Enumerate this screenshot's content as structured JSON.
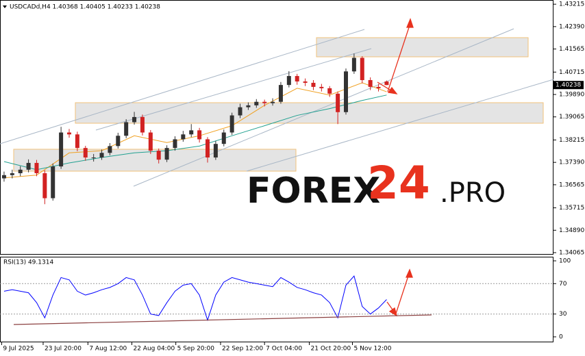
{
  "chart_data": [
    {
      "type": "candlestick",
      "title": "USDCADd,H4  1.40368 1.40405 1.40233 1.40238",
      "up_color": "#333333",
      "down_color": "#d22222",
      "x": [
        0,
        1,
        2,
        3,
        4,
        5,
        6,
        7,
        8,
        9,
        10,
        11,
        12,
        13,
        14,
        15,
        16,
        17,
        18,
        19,
        20,
        21,
        22,
        23,
        24,
        25,
        26,
        27,
        28,
        29,
        30,
        31,
        32,
        33,
        34,
        35,
        36,
        37,
        38,
        39,
        40,
        41,
        42,
        43,
        44,
        45,
        46,
        47
      ],
      "open": [
        1.368,
        1.3692,
        1.3699,
        1.3712,
        1.3737,
        1.3699,
        1.3607,
        1.3724,
        1.3849,
        1.3842,
        1.3792,
        1.3757,
        1.3757,
        1.3774,
        1.3799,
        1.3837,
        1.3887,
        1.3906,
        1.3849,
        1.3782,
        1.3749,
        1.3792,
        1.3824,
        1.3842,
        1.3857,
        1.3824,
        1.3757,
        1.3807,
        1.3849,
        1.3912,
        1.3942,
        1.3949,
        1.3962,
        1.3957,
        1.3962,
        1.4024,
        1.4057,
        1.4037,
        1.4032,
        1.4017,
        1.4012,
        1.3992,
        1.3924,
        1.4074,
        1.4124,
        1.4042,
        1.4017,
        1.40368
      ],
      "high": [
        1.3705,
        1.3712,
        1.3725,
        1.375,
        1.3748,
        1.371,
        1.3735,
        1.387,
        1.3862,
        1.3852,
        1.38,
        1.377,
        1.3786,
        1.381,
        1.3848,
        1.3898,
        1.3925,
        1.3915,
        1.3858,
        1.379,
        1.3802,
        1.3835,
        1.3855,
        1.388,
        1.3866,
        1.3832,
        1.3818,
        1.386,
        1.3922,
        1.3955,
        1.396,
        1.3972,
        1.397,
        1.3975,
        1.4035,
        1.4075,
        1.4065,
        1.4048,
        1.4042,
        1.4028,
        1.402,
        1.4,
        1.4085,
        1.414,
        1.413,
        1.4052,
        1.4028,
        1.40405
      ],
      "low": [
        1.3668,
        1.368,
        1.3688,
        1.3702,
        1.3688,
        1.3585,
        1.3598,
        1.3715,
        1.383,
        1.378,
        1.3745,
        1.3742,
        1.3748,
        1.3765,
        1.379,
        1.3828,
        1.3878,
        1.3838,
        1.377,
        1.3735,
        1.374,
        1.3782,
        1.3815,
        1.3832,
        1.3812,
        1.3738,
        1.3748,
        1.3798,
        1.384,
        1.3902,
        1.3932,
        1.394,
        1.3945,
        1.3948,
        1.3955,
        1.4015,
        1.4025,
        1.402,
        1.4005,
        1.4,
        1.398,
        1.388,
        1.3915,
        1.4065,
        1.403,
        1.4005,
        1.4,
        1.40233
      ],
      "close": [
        1.3692,
        1.3699,
        1.3712,
        1.3737,
        1.3699,
        1.3607,
        1.3724,
        1.3849,
        1.3842,
        1.3792,
        1.3757,
        1.3757,
        1.3774,
        1.3799,
        1.3837,
        1.3887,
        1.3906,
        1.3849,
        1.3782,
        1.3749,
        1.3792,
        1.3824,
        1.3842,
        1.3857,
        1.3824,
        1.3757,
        1.3807,
        1.3849,
        1.3912,
        1.3942,
        1.3949,
        1.3962,
        1.3957,
        1.3962,
        1.4024,
        1.4057,
        1.4037,
        1.4032,
        1.4017,
        1.4012,
        1.3992,
        1.3924,
        1.4074,
        1.4124,
        1.4042,
        1.4017,
        1.4012,
        1.40238
      ],
      "series": [
        {
          "color": "#f0a020",
          "x": [
            0,
            4,
            8,
            12,
            16,
            20,
            24,
            28,
            32,
            36,
            40,
            44,
            47
          ],
          "values": [
            1.3682,
            1.3692,
            1.3774,
            1.3782,
            1.3837,
            1.3812,
            1.3837,
            1.3874,
            1.3949,
            1.4012,
            1.3987,
            1.4032,
            1.3999
          ]
        },
        {
          "color": "#20a090",
          "x": [
            0,
            4,
            8,
            12,
            16,
            20,
            24,
            28,
            32,
            36,
            40,
            44,
            47
          ],
          "values": [
            1.3742,
            1.3712,
            1.3737,
            1.3757,
            1.3774,
            1.3782,
            1.3799,
            1.3837,
            1.3874,
            1.3912,
            1.3937,
            1.3967,
            1.3987
          ]
        }
      ],
      "last_price": 1.40238,
      "xlim": [
        -0.5,
        67.5
      ],
      "xticks": [
        {
          "value": -0.3,
          "label": "9 Jul 2025"
        },
        {
          "value": 4.8,
          "label": "23 Jul 20:00"
        },
        {
          "value": 10.3,
          "label": "7 Aug 12:00"
        },
        {
          "value": 15.7,
          "label": "22 Aug 04:00"
        },
        {
          "value": 21.1,
          "label": "5 Sep 20:00"
        },
        {
          "value": 26.6,
          "label": "22 Sep 12:00"
        },
        {
          "value": 32,
          "label": "7 Oct 04:00"
        },
        {
          "value": 37.5,
          "label": "21 Oct 20:00"
        },
        {
          "value": 42.8,
          "label": "5 Nov 12:00"
        }
      ],
      "ylim": [
        1.3399,
        1.4337
      ],
      "yticks": [
        1.43215,
        {
          "value": 1.4239,
          "label": "1.42390"
        },
        1.41565,
        1.40715,
        {
          "value": 1.3989,
          "label": "1.39890"
        },
        1.39065,
        1.38215,
        {
          "value": 1.3739,
          "label": "1.37390"
        },
        1.36565,
        1.35715,
        {
          "value": 1.3489,
          "label": "1.34890"
        },
        1.34065
      ],
      "watermark": [
        "FOREX",
        "24",
        ".PRO"
      ]
    },
    {
      "type": "line",
      "title": "RSI(13) 49.1314",
      "series": [
        {
          "color": "#0000ff",
          "x": [
            0,
            1,
            2,
            3,
            4,
            5,
            6,
            7,
            8,
            9,
            10,
            11,
            12,
            13,
            14,
            15,
            16,
            17,
            18,
            19,
            20,
            21,
            22,
            23,
            24,
            25,
            26,
            27,
            28,
            29,
            30,
            31,
            32,
            33,
            34,
            35,
            36,
            37,
            38,
            39,
            40,
            41,
            42,
            43,
            44,
            45,
            46,
            47
          ],
          "values": [
            60,
            62,
            60,
            58,
            45,
            25,
            55,
            78,
            75,
            60,
            55,
            58,
            62,
            65,
            70,
            78,
            75,
            55,
            30,
            28,
            45,
            60,
            68,
            70,
            55,
            22,
            55,
            72,
            78,
            75,
            72,
            70,
            68,
            66,
            78,
            72,
            65,
            62,
            58,
            55,
            45,
            25,
            68,
            80,
            40,
            30,
            38,
            49.13
          ]
        }
      ],
      "xlim": [
        -0.5,
        67.5
      ],
      "ylim": [
        -7.2,
        104.5
      ],
      "yticks": [
        0,
        30,
        70,
        100
      ],
      "levels": [
        30,
        70
      ]
    }
  ]
}
